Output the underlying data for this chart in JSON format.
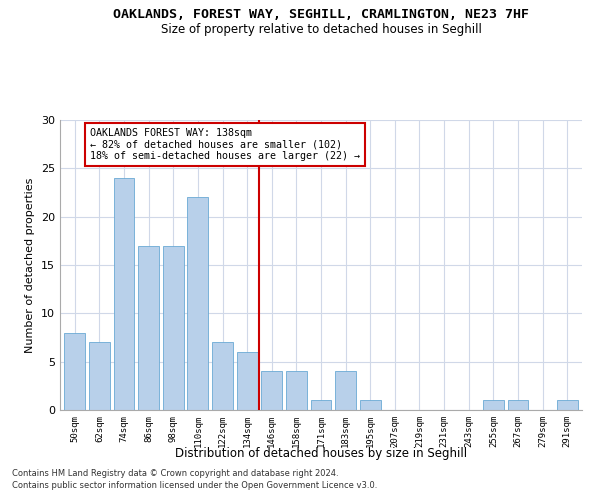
{
  "title": "OAKLANDS, FOREST WAY, SEGHILL, CRAMLINGTON, NE23 7HF",
  "subtitle": "Size of property relative to detached houses in Seghill",
  "xlabel": "Distribution of detached houses by size in Seghill",
  "ylabel": "Number of detached properties",
  "bar_color": "#b8d0ea",
  "bar_edgecolor": "#6aaad4",
  "categories": [
    "50sqm",
    "62sqm",
    "74sqm",
    "86sqm",
    "98sqm",
    "110sqm",
    "122sqm",
    "134sqm",
    "146sqm",
    "158sqm",
    "171sqm",
    "183sqm",
    "195sqm",
    "207sqm",
    "219sqm",
    "231sqm",
    "243sqm",
    "255sqm",
    "267sqm",
    "279sqm",
    "291sqm"
  ],
  "values": [
    8,
    7,
    24,
    17,
    17,
    22,
    7,
    6,
    4,
    4,
    1,
    4,
    1,
    0,
    0,
    0,
    0,
    1,
    1,
    0,
    1
  ],
  "vline_x": 7.5,
  "vline_color": "#cc0000",
  "annotation_text": "OAKLANDS FOREST WAY: 138sqm\n← 82% of detached houses are smaller (102)\n18% of semi-detached houses are larger (22) →",
  "ylim": [
    0,
    30
  ],
  "yticks": [
    0,
    5,
    10,
    15,
    20,
    25,
    30
  ],
  "footer1": "Contains HM Land Registry data © Crown copyright and database right 2024.",
  "footer2": "Contains public sector information licensed under the Open Government Licence v3.0.",
  "background_color": "#ffffff",
  "plot_background": "#ffffff",
  "grid_color": "#d0d8e8"
}
